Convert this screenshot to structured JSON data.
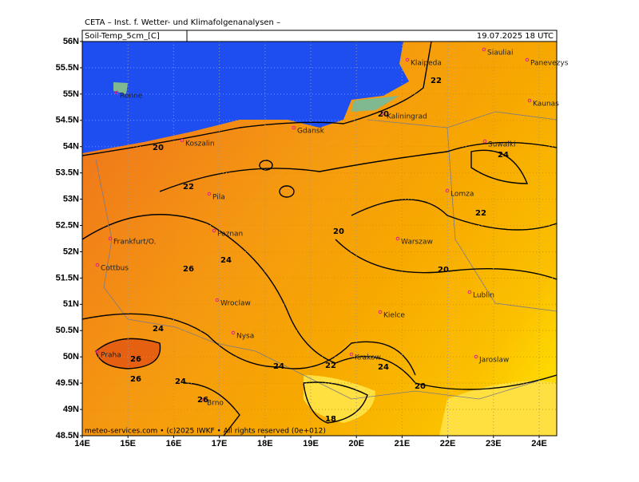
{
  "header": {
    "title": "CETA – Inst. f. Wetter- und Klimafolgenanalysen –",
    "variable": "Soil-Temp_5cm_[C]",
    "valid_time": "19.07.2025  18 UTC"
  },
  "footer": "meteo-services.com • (c)2025 IWKF • All rights reserved (0e+012)",
  "lat_labels": [
    "56N",
    "55.5N",
    "55N",
    "54.5N",
    "54N",
    "53.5N",
    "53N",
    "52.5N",
    "52N",
    "51.5N",
    "51N",
    "50.5N",
    "50N",
    "49.5N",
    "49N",
    "48.5N"
  ],
  "lon_labels": [
    "14E",
    "15E",
    "16E",
    "17E",
    "18E",
    "19E",
    "20E",
    "21E",
    "22E",
    "23E",
    "24E"
  ],
  "cities": [
    "Klaipeda",
    "Siauliai",
    "Panevezys",
    "Ronne",
    "Kaunas",
    "Kaliningrad",
    "Gdansk",
    "Koszalin",
    "Suwalki",
    "Pila",
    "Lomza",
    "Poznan",
    "Frankfurt/O.",
    "Warszaw",
    "Cottbus",
    "Lublin",
    "Wroclaw",
    "Kielce",
    "Nysa",
    "Praha",
    "Krakow",
    "Jaroslaw",
    "Brno"
  ],
  "contour_labels": [
    22,
    20,
    20,
    24,
    22,
    22,
    20,
    24,
    26,
    20,
    24,
    26,
    24,
    22,
    24,
    26,
    24,
    20,
    26,
    18
  ]
}
